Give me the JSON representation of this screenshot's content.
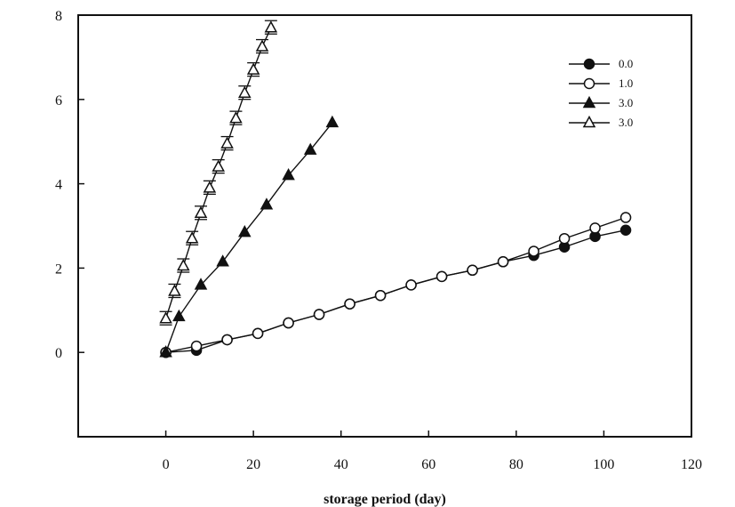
{
  "chart_data": {
    "type": "line",
    "title": "",
    "xlabel": "storage period (day)",
    "ylabel": "",
    "xlim": [
      -20,
      120
    ],
    "ylim": [
      -2,
      8
    ],
    "xticks": [
      0,
      20,
      40,
      60,
      80,
      100,
      120
    ],
    "xtick_labels": [
      "0",
      "20",
      "40",
      "60",
      "80",
      "100",
      "120"
    ],
    "yticks": [
      0,
      2,
      4,
      6,
      8
    ],
    "ytick_labels": [
      "0",
      "2",
      "4",
      "6",
      "8"
    ],
    "grid": false,
    "legend_position": "top-right",
    "series": [
      {
        "name": "0.0",
        "marker": "filled-circle",
        "x": [
          0,
          7,
          14,
          21,
          28,
          35,
          42,
          49,
          56,
          63,
          70,
          77,
          84,
          91,
          98,
          105
        ],
        "y": [
          0,
          0.05,
          0.3,
          0.45,
          0.7,
          0.9,
          1.15,
          1.35,
          1.6,
          1.8,
          1.95,
          2.15,
          2.3,
          2.5,
          2.75,
          2.9
        ]
      },
      {
        "name": "1.0",
        "marker": "open-circle",
        "x": [
          0,
          7,
          14,
          21,
          28,
          35,
          42,
          49,
          56,
          63,
          70,
          77,
          84,
          91,
          98,
          105
        ],
        "y": [
          0,
          0.15,
          0.3,
          0.45,
          0.7,
          0.9,
          1.15,
          1.35,
          1.6,
          1.8,
          1.95,
          2.15,
          2.4,
          2.7,
          2.95,
          3.2
        ]
      },
      {
        "name": "3.0",
        "marker": "filled-triangle",
        "x": [
          0,
          3,
          8,
          13,
          18,
          23,
          28,
          33,
          38
        ],
        "y": [
          0,
          0.85,
          1.6,
          2.15,
          2.85,
          3.5,
          4.2,
          4.8,
          5.45
        ]
      },
      {
        "name": "3.0",
        "marker": "open-triangle",
        "x": [
          0,
          2,
          4,
          6,
          8,
          10,
          12,
          14,
          16,
          18,
          20,
          22,
          24
        ],
        "y": [
          0.8,
          1.45,
          2.05,
          2.7,
          3.3,
          3.9,
          4.4,
          4.95,
          5.55,
          6.15,
          6.7,
          7.25,
          7.7
        ]
      }
    ]
  }
}
